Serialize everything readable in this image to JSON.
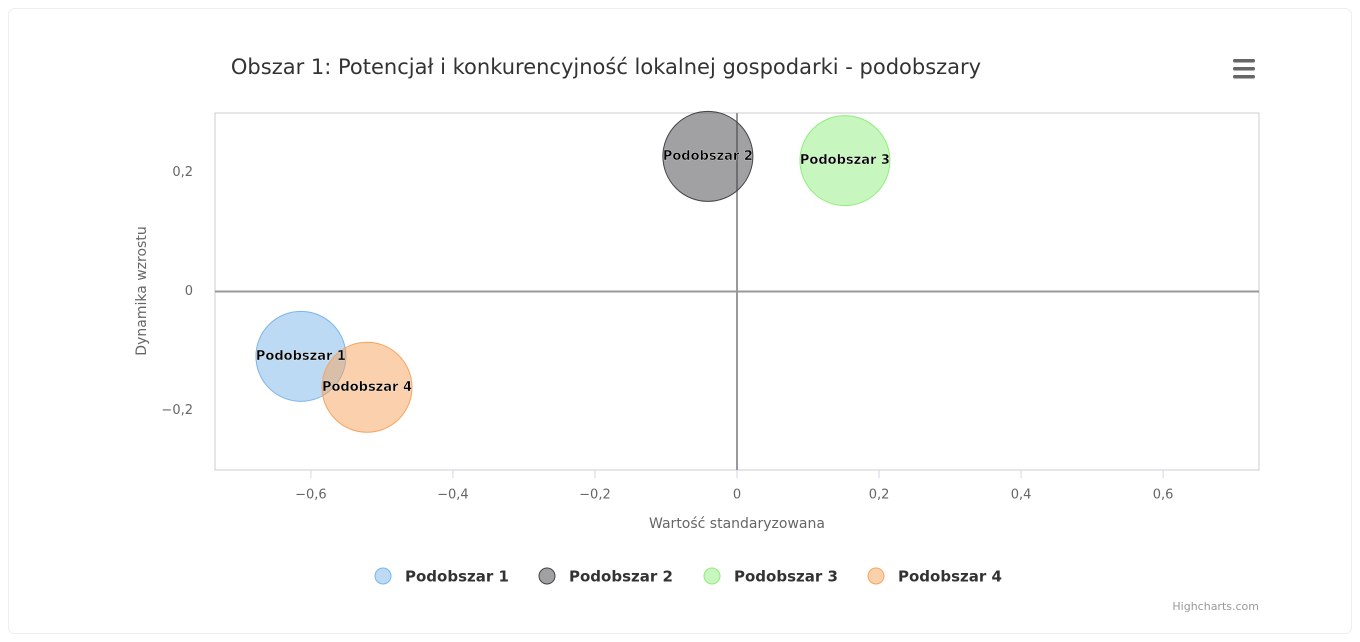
{
  "chart_data": {
    "type": "scatter",
    "title": "Obszar 1: Potencjał i konkurencyjność lokalnej gospodarki - podobszary",
    "x_label": "Wartość standaryzowana",
    "y_label": "Dynamika wzrostu",
    "credits": "Highcharts.com",
    "xlim": [
      -0.735,
      0.735
    ],
    "ylim": [
      -0.3,
      0.3
    ],
    "xticks": [
      {
        "value": -0.6,
        "label": "−0,6"
      },
      {
        "value": -0.4,
        "label": "−0,4"
      },
      {
        "value": -0.2,
        "label": "−0,2"
      },
      0,
      {
        "value": 0.2,
        "label": "0,2"
      },
      {
        "value": 0.4,
        "label": "0,4"
      },
      {
        "value": 0.6,
        "label": "0,6"
      }
    ],
    "yticks": [
      {
        "value": -0.2,
        "label": "−0,2"
      },
      0,
      {
        "value": 0.2,
        "label": "0,2"
      }
    ],
    "series": [
      {
        "name": "Podobszar 1",
        "color": "#7cb5ec",
        "x": [
          -0.614
        ],
        "values": [
          -0.109
        ]
      },
      {
        "name": "Podobszar 2",
        "color": "#434348",
        "x": [
          -0.041
        ],
        "values": [
          0.227
        ]
      },
      {
        "name": "Podobszar 3",
        "color": "#90ed7d",
        "x": [
          0.152
        ],
        "values": [
          0.22
        ]
      },
      {
        "name": "Podobszar 4",
        "color": "#f7a35c",
        "x": [
          -0.521
        ],
        "values": [
          -0.161
        ]
      }
    ]
  }
}
